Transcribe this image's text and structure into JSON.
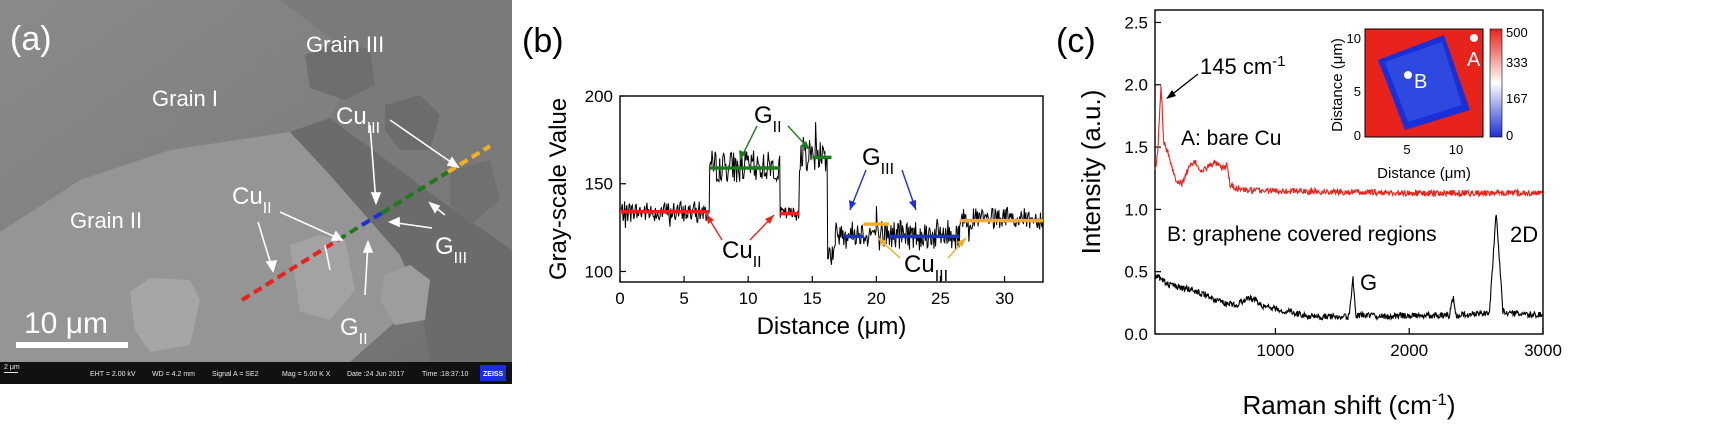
{
  "panels": {
    "a": {
      "label": "(a)",
      "grain_labels": [
        "Grain I",
        "Grain II",
        "Grain III"
      ],
      "annotations": {
        "cu2": "Cu",
        "cu2_sub": "II",
        "cu3": "Cu",
        "cu3_sub": "III",
        "g2": "G",
        "g2_sub": "II",
        "g3": "G",
        "g3_sub": "III"
      },
      "scalebar": "10 μm",
      "info_bar": {
        "small_scale": "2 μm",
        "eht": "EHT = 2.00 kV",
        "wd": "WD = 4.2 mm",
        "signal": "Signal A = SE2",
        "mag": "Mag = 5.00 K X",
        "date": "Date :24 Jun 2017",
        "time": "Time :18:37:10",
        "logo": "ZEISS"
      },
      "line_colors": [
        "#e8231b",
        "#1f7a1f",
        "#1a2fd6",
        "#1f7a1f",
        "#f2b01e"
      ]
    },
    "b": {
      "label": "(b)",
      "annotations": {
        "g2": "G",
        "g2_sub": "II",
        "g3": "G",
        "g3_sub": "III",
        "cu2": "Cu",
        "cu2_sub": "II",
        "cu3": "Cu",
        "cu3_sub": "III"
      }
    },
    "c": {
      "label": "(c)",
      "peak_label": "145 cm",
      "peak_sup": "-1",
      "series_a_label": "A: bare Cu",
      "series_b_label": "B: graphene covered regions",
      "peak_g": "G",
      "peak_2d": "2D",
      "inset": {
        "xlabel": "Distance (μm)",
        "ylabel": "Distance (μm)",
        "xticks": [
          "5",
          "10"
        ],
        "yticks": [
          "0",
          "5",
          "10"
        ],
        "colorbar_ticks": [
          "500",
          "333",
          "167",
          "0"
        ],
        "point_a": "A",
        "point_b": "B"
      }
    }
  },
  "chart_data": [
    {
      "type": "line",
      "panel": "b",
      "xlabel": "Distance (μm)",
      "ylabel": "Gray-scale Value",
      "xlim": [
        0,
        33
      ],
      "ylim": [
        94,
        200
      ],
      "xticks": [
        0,
        5,
        10,
        15,
        20,
        25,
        30
      ],
      "yticks": [
        100,
        150,
        200
      ],
      "profile_segments": [
        {
          "x": [
            0,
            7
          ],
          "mean": 134,
          "noise": 6
        },
        {
          "x": [
            7,
            12.5
          ],
          "mean": 160,
          "noise": 9
        },
        {
          "x": [
            12.5,
            14
          ],
          "mean": 133,
          "noise": 4
        },
        {
          "x": [
            14,
            16.2
          ],
          "mean": 167,
          "noise": 10
        },
        {
          "x": [
            16.2,
            16.8
          ],
          "mean": 110,
          "noise": 8
        },
        {
          "x": [
            16.8,
            20
          ],
          "mean": 122,
          "noise": 7
        },
        {
          "x": [
            20,
            26.5
          ],
          "mean": 121,
          "noise": 9
        },
        {
          "x": [
            26.5,
            33
          ],
          "mean": 130,
          "noise": 6
        }
      ],
      "level_lines": [
        {
          "color": "#e8231b",
          "x": [
            0,
            7
          ],
          "y": 134
        },
        {
          "color": "#1f7a1f",
          "x": [
            7,
            12.5
          ],
          "y": 159
        },
        {
          "color": "#e8231b",
          "x": [
            12.5,
            14
          ],
          "y": 133
        },
        {
          "color": "#1f7a1f",
          "x": [
            15,
            16.5
          ],
          "y": 165
        },
        {
          "color": "#1a2fd6",
          "x": [
            17.5,
            19
          ],
          "y": 120
        },
        {
          "color": "#f2b01e",
          "x": [
            19,
            21
          ],
          "y": 127
        },
        {
          "color": "#1a2fd6",
          "x": [
            21,
            26.5
          ],
          "y": 120
        },
        {
          "color": "#f2b01e",
          "x": [
            26.5,
            33
          ],
          "y": 129
        }
      ]
    },
    {
      "type": "line",
      "panel": "c",
      "xlabel": "Raman shift (cm-1)",
      "ylabel": "Intensity (a.u.)",
      "xlim": [
        100,
        3000
      ],
      "ylim": [
        0,
        2.6
      ],
      "xticks": [
        1000,
        2000,
        3000
      ],
      "yticks": [
        0.0,
        0.5,
        1.0,
        1.5,
        2.0,
        2.5
      ],
      "series": [
        {
          "name": "A: bare Cu",
          "color": "#e8231b",
          "points": [
            [
              100,
              1.3
            ],
            [
              120,
              1.45
            ],
            [
              145,
              2.0
            ],
            [
              165,
              1.55
            ],
            [
              200,
              1.45
            ],
            [
              250,
              1.25
            ],
            [
              300,
              1.2
            ],
            [
              350,
              1.33
            ],
            [
              400,
              1.38
            ],
            [
              450,
              1.3
            ],
            [
              500,
              1.35
            ],
            [
              550,
              1.37
            ],
            [
              600,
              1.33
            ],
            [
              640,
              1.35
            ],
            [
              660,
              1.2
            ],
            [
              700,
              1.17
            ],
            [
              800,
              1.15
            ],
            [
              1000,
              1.15
            ],
            [
              1500,
              1.14
            ],
            [
              2000,
              1.13
            ],
            [
              2500,
              1.13
            ],
            [
              3000,
              1.13
            ]
          ]
        },
        {
          "name": "B: graphene covered regions",
          "color": "#000000",
          "points": [
            [
              100,
              0.48
            ],
            [
              200,
              0.4
            ],
            [
              300,
              0.37
            ],
            [
              400,
              0.35
            ],
            [
              500,
              0.3
            ],
            [
              600,
              0.25
            ],
            [
              700,
              0.23
            ],
            [
              800,
              0.29
            ],
            [
              850,
              0.28
            ],
            [
              900,
              0.22
            ],
            [
              1000,
              0.2
            ],
            [
              1100,
              0.18
            ],
            [
              1200,
              0.15
            ],
            [
              1300,
              0.14
            ],
            [
              1400,
              0.14
            ],
            [
              1550,
              0.14
            ],
            [
              1580,
              0.44
            ],
            [
              1600,
              0.15
            ],
            [
              1700,
              0.15
            ],
            [
              1800,
              0.14
            ],
            [
              2000,
              0.15
            ],
            [
              2300,
              0.15
            ],
            [
              2330,
              0.3
            ],
            [
              2350,
              0.15
            ],
            [
              2600,
              0.17
            ],
            [
              2650,
              0.98
            ],
            [
              2700,
              0.18
            ],
            [
              2800,
              0.16
            ],
            [
              3000,
              0.15
            ]
          ]
        }
      ]
    }
  ]
}
